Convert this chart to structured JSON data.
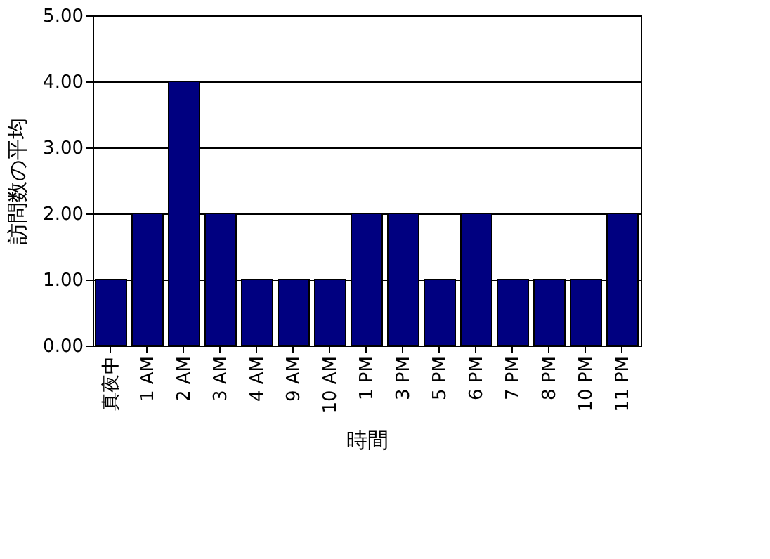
{
  "chart_data": {
    "type": "bar",
    "xlabel": "時間",
    "ylabel": "訪問数の平均",
    "categories": [
      "真夜中",
      "1 AM",
      "2 AM",
      "3 AM",
      "4 AM",
      "9 AM",
      "10 AM",
      "1 PM",
      "3 PM",
      "5 PM",
      "6 PM",
      "7 PM",
      "8 PM",
      "10 PM",
      "11 PM"
    ],
    "values": [
      1,
      2,
      4,
      2,
      1,
      1,
      1,
      2,
      2,
      1,
      2,
      1,
      1,
      1,
      2
    ],
    "color": "#000080",
    "ylim": [
      0,
      5
    ],
    "yticks": [
      {
        "value": 0,
        "label": "0.00"
      },
      {
        "value": 1,
        "label": "1.00"
      },
      {
        "value": 2,
        "label": "2.00"
      },
      {
        "value": 3,
        "label": "3.00"
      },
      {
        "value": 4,
        "label": "4.00"
      },
      {
        "value": 5,
        "label": "5.00"
      }
    ],
    "grid": "y"
  }
}
